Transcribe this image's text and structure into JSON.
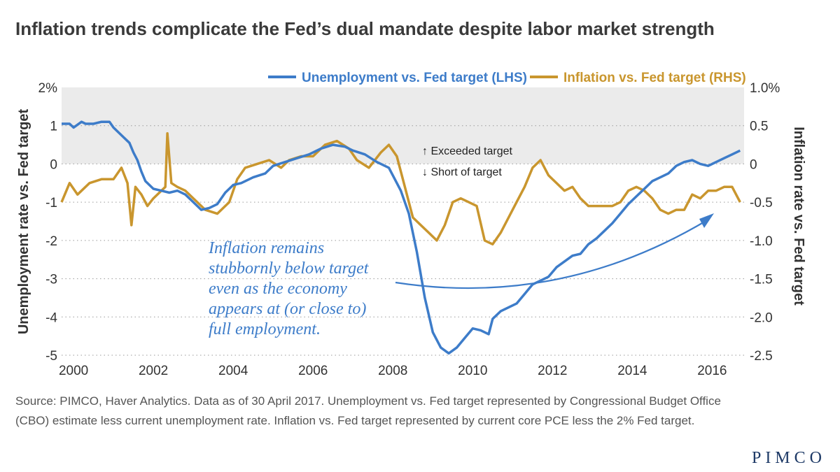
{
  "colors": {
    "unemployment": "#3d7cc9",
    "inflation": "#c9962e",
    "band": "#ebebeb",
    "logo": "#1d3966"
  },
  "chart_data": {
    "type": "line",
    "title": "Inflation trends complicate the Fed’s dual mandate despite labor market strength",
    "x_ticks": [
      "2000",
      "2002",
      "2004",
      "2006",
      "2008",
      "2010",
      "2012",
      "2014",
      "2016"
    ],
    "x_tick_values": [
      2000,
      2002,
      2004,
      2006,
      2008,
      2010,
      2012,
      2014,
      2016
    ],
    "xlim": [
      1999.7,
      2016.8
    ],
    "y_left": {
      "label": "Unemployment rate vs. Fed target",
      "ylim": [
        -5,
        2
      ],
      "ticks": [
        "2%",
        "1",
        "0",
        "-1",
        "-2",
        "-3",
        "-4",
        "-5"
      ],
      "tick_values": [
        2,
        1,
        0,
        -1,
        -2,
        -3,
        -4,
        -5
      ]
    },
    "y_right": {
      "label": "Inflation rate vs. Fed target",
      "ylim": [
        -2.5,
        1.0
      ],
      "ticks": [
        "1.0%",
        "0.5",
        "0",
        "-0.5",
        "-1.0",
        "-1.5",
        "-2.0",
        "-2.5"
      ],
      "tick_values": [
        1.0,
        0.5,
        0,
        -0.5,
        -1.0,
        -1.5,
        -2.0,
        -2.5
      ]
    },
    "shaded_band": {
      "axis": "left",
      "from": 0,
      "to": 2
    },
    "annotations": {
      "above": "↑ Exceeded target",
      "below": "↓ Short of target"
    },
    "callout": [
      "Inflation remains",
      "stubbornly below target",
      "even as the economy",
      "appears at (or close to)",
      "full employment."
    ],
    "series": [
      {
        "name": "Unemployment vs. Fed target (LHS)",
        "axis": "left",
        "points": [
          [
            1999.7,
            1.05
          ],
          [
            1999.9,
            1.05
          ],
          [
            2000.0,
            0.95
          ],
          [
            2000.2,
            1.1
          ],
          [
            2000.3,
            1.05
          ],
          [
            2000.5,
            1.05
          ],
          [
            2000.7,
            1.1
          ],
          [
            2000.9,
            1.1
          ],
          [
            2001.0,
            0.95
          ],
          [
            2001.2,
            0.75
          ],
          [
            2001.4,
            0.55
          ],
          [
            2001.5,
            0.3
          ],
          [
            2001.6,
            0.1
          ],
          [
            2001.7,
            -0.2
          ],
          [
            2001.8,
            -0.45
          ],
          [
            2002.0,
            -0.65
          ],
          [
            2002.2,
            -0.7
          ],
          [
            2002.4,
            -0.75
          ],
          [
            2002.6,
            -0.7
          ],
          [
            2002.8,
            -0.8
          ],
          [
            2003.0,
            -1.0
          ],
          [
            2003.2,
            -1.2
          ],
          [
            2003.4,
            -1.15
          ],
          [
            2003.6,
            -1.05
          ],
          [
            2003.8,
            -0.75
          ],
          [
            2004.0,
            -0.55
          ],
          [
            2004.2,
            -0.5
          ],
          [
            2004.5,
            -0.35
          ],
          [
            2004.8,
            -0.25
          ],
          [
            2005.0,
            -0.05
          ],
          [
            2005.3,
            0.05
          ],
          [
            2005.6,
            0.15
          ],
          [
            2005.9,
            0.25
          ],
          [
            2006.2,
            0.4
          ],
          [
            2006.5,
            0.5
          ],
          [
            2006.8,
            0.45
          ],
          [
            2007.0,
            0.35
          ],
          [
            2007.3,
            0.25
          ],
          [
            2007.6,
            0.05
          ],
          [
            2007.9,
            -0.1
          ],
          [
            2008.0,
            -0.3
          ],
          [
            2008.2,
            -0.7
          ],
          [
            2008.4,
            -1.3
          ],
          [
            2008.6,
            -2.3
          ],
          [
            2008.8,
            -3.5
          ],
          [
            2009.0,
            -4.4
          ],
          [
            2009.2,
            -4.8
          ],
          [
            2009.4,
            -4.95
          ],
          [
            2009.6,
            -4.8
          ],
          [
            2009.8,
            -4.55
          ],
          [
            2010.0,
            -4.3
          ],
          [
            2010.2,
            -4.35
          ],
          [
            2010.4,
            -4.45
          ],
          [
            2010.5,
            -4.05
          ],
          [
            2010.7,
            -3.85
          ],
          [
            2010.9,
            -3.75
          ],
          [
            2011.1,
            -3.65
          ],
          [
            2011.3,
            -3.4
          ],
          [
            2011.5,
            -3.15
          ],
          [
            2011.7,
            -3.05
          ],
          [
            2011.9,
            -2.95
          ],
          [
            2012.1,
            -2.7
          ],
          [
            2012.3,
            -2.55
          ],
          [
            2012.5,
            -2.4
          ],
          [
            2012.7,
            -2.35
          ],
          [
            2012.9,
            -2.1
          ],
          [
            2013.1,
            -1.95
          ],
          [
            2013.3,
            -1.75
          ],
          [
            2013.5,
            -1.55
          ],
          [
            2013.7,
            -1.3
          ],
          [
            2013.9,
            -1.05
          ],
          [
            2014.1,
            -0.85
          ],
          [
            2014.3,
            -0.65
          ],
          [
            2014.5,
            -0.45
          ],
          [
            2014.7,
            -0.35
          ],
          [
            2014.9,
            -0.25
          ],
          [
            2015.1,
            -0.05
          ],
          [
            2015.3,
            0.05
          ],
          [
            2015.5,
            0.1
          ],
          [
            2015.7,
            0.0
          ],
          [
            2015.9,
            -0.05
          ],
          [
            2016.1,
            0.05
          ],
          [
            2016.3,
            0.15
          ],
          [
            2016.5,
            0.25
          ],
          [
            2016.7,
            0.35
          ]
        ]
      },
      {
        "name": "Inflation vs. Fed target (RHS)",
        "axis": "right",
        "points": [
          [
            1999.7,
            -0.5
          ],
          [
            1999.9,
            -0.25
          ],
          [
            2000.1,
            -0.4
          ],
          [
            2000.4,
            -0.25
          ],
          [
            2000.7,
            -0.2
          ],
          [
            2001.0,
            -0.2
          ],
          [
            2001.2,
            -0.05
          ],
          [
            2001.35,
            -0.25
          ],
          [
            2001.45,
            -0.8
          ],
          [
            2001.55,
            -0.3
          ],
          [
            2001.7,
            -0.4
          ],
          [
            2001.85,
            -0.55
          ],
          [
            2002.0,
            -0.45
          ],
          [
            2002.2,
            -0.35
          ],
          [
            2002.3,
            -0.3
          ],
          [
            2002.35,
            0.4
          ],
          [
            2002.45,
            -0.25
          ],
          [
            2002.6,
            -0.3
          ],
          [
            2002.8,
            -0.35
          ],
          [
            2003.0,
            -0.45
          ],
          [
            2003.3,
            -0.6
          ],
          [
            2003.6,
            -0.65
          ],
          [
            2003.9,
            -0.5
          ],
          [
            2004.1,
            -0.2
          ],
          [
            2004.3,
            -0.05
          ],
          [
            2004.6,
            0.0
          ],
          [
            2004.9,
            0.05
          ],
          [
            2005.2,
            -0.05
          ],
          [
            2005.4,
            0.05
          ],
          [
            2005.7,
            0.1
          ],
          [
            2006.0,
            0.1
          ],
          [
            2006.3,
            0.25
          ],
          [
            2006.6,
            0.3
          ],
          [
            2006.9,
            0.2
          ],
          [
            2007.1,
            0.05
          ],
          [
            2007.4,
            -0.05
          ],
          [
            2007.7,
            0.15
          ],
          [
            2007.9,
            0.25
          ],
          [
            2008.1,
            0.1
          ],
          [
            2008.3,
            -0.3
          ],
          [
            2008.5,
            -0.7
          ],
          [
            2008.7,
            -0.8
          ],
          [
            2008.9,
            -0.9
          ],
          [
            2009.1,
            -1.0
          ],
          [
            2009.3,
            -0.8
          ],
          [
            2009.5,
            -0.5
          ],
          [
            2009.7,
            -0.45
          ],
          [
            2009.9,
            -0.5
          ],
          [
            2010.1,
            -0.55
          ],
          [
            2010.3,
            -1.0
          ],
          [
            2010.5,
            -1.05
          ],
          [
            2010.7,
            -0.9
          ],
          [
            2010.9,
            -0.7
          ],
          [
            2011.1,
            -0.5
          ],
          [
            2011.3,
            -0.3
          ],
          [
            2011.5,
            -0.05
          ],
          [
            2011.7,
            0.05
          ],
          [
            2011.9,
            -0.15
          ],
          [
            2012.1,
            -0.25
          ],
          [
            2012.3,
            -0.35
          ],
          [
            2012.5,
            -0.3
          ],
          [
            2012.7,
            -0.45
          ],
          [
            2012.9,
            -0.55
          ],
          [
            2013.1,
            -0.55
          ],
          [
            2013.3,
            -0.55
          ],
          [
            2013.5,
            -0.55
          ],
          [
            2013.7,
            -0.5
          ],
          [
            2013.9,
            -0.35
          ],
          [
            2014.1,
            -0.3
          ],
          [
            2014.3,
            -0.35
          ],
          [
            2014.5,
            -0.45
          ],
          [
            2014.7,
            -0.6
          ],
          [
            2014.9,
            -0.65
          ],
          [
            2015.1,
            -0.6
          ],
          [
            2015.3,
            -0.6
          ],
          [
            2015.5,
            -0.4
          ],
          [
            2015.7,
            -0.45
          ],
          [
            2015.9,
            -0.35
          ],
          [
            2016.1,
            -0.35
          ],
          [
            2016.3,
            -0.3
          ],
          [
            2016.5,
            -0.3
          ],
          [
            2016.7,
            -0.5
          ]
        ]
      }
    ]
  },
  "source_lines": [
    "Source: PIMCO, Haver Analytics. Data as of 30 April 2017. Unemployment vs. Fed target represented by Congressional Budget Office",
    "(CBO) estimate less current unemployment rate. Inflation vs. Fed target represented by current core PCE less the 2% Fed target."
  ],
  "logo": "PIMCO"
}
